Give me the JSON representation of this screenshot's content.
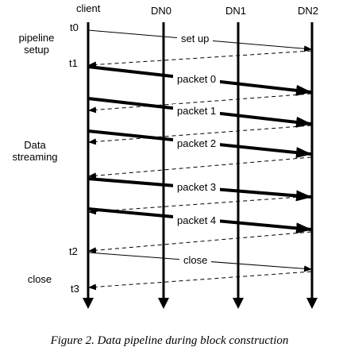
{
  "nodes": {
    "client": "client",
    "dn0": "DN0",
    "dn1": "DN1",
    "dn2": "DN2"
  },
  "phases": {
    "setup": [
      "pipeline",
      "setup"
    ],
    "streaming": [
      "Data",
      "streaming"
    ],
    "close": [
      "close"
    ]
  },
  "times": {
    "t0": "t0",
    "t1": "t1",
    "t2": "t2",
    "t3": "t3"
  },
  "messages": {
    "setup": "set up",
    "packet0": "packet 0",
    "packet1": "packet 1",
    "packet2": "packet 2",
    "packet3": "packet 3",
    "packet4": "packet 4",
    "close": "close"
  },
  "caption": "Figure 2. Data pipeline during block construction"
}
